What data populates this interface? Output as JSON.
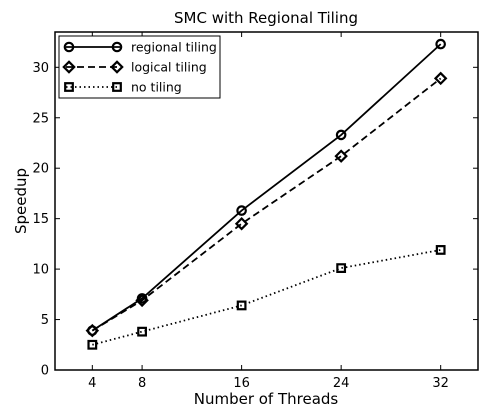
{
  "chart_data": {
    "type": "line",
    "title": "SMC with Regional Tiling",
    "xlabel": "Number of Threads",
    "ylabel": "Speedup",
    "x": [
      4,
      8,
      16,
      24,
      32
    ],
    "xticks": [
      4,
      8,
      16,
      24,
      32
    ],
    "yticks": [
      0,
      5,
      10,
      15,
      20,
      25,
      30
    ],
    "xlim": [
      1,
      35
    ],
    "ylim": [
      0,
      33.5
    ],
    "grid": false,
    "legend_position": "top-left",
    "series": [
      {
        "name": "regional tiling",
        "values": [
          3.9,
          7.1,
          15.8,
          23.3,
          32.3
        ],
        "line_style": "solid",
        "marker": "circle",
        "color": "#000000"
      },
      {
        "name": "logical tiling",
        "values": [
          3.9,
          6.9,
          14.5,
          21.2,
          28.9
        ],
        "line_style": "dashed",
        "marker": "diamond",
        "color": "#000000"
      },
      {
        "name": "no tiling",
        "values": [
          2.5,
          3.8,
          6.4,
          10.1,
          11.9
        ],
        "line_style": "dotted",
        "marker": "square",
        "color": "#000000"
      }
    ]
  }
}
